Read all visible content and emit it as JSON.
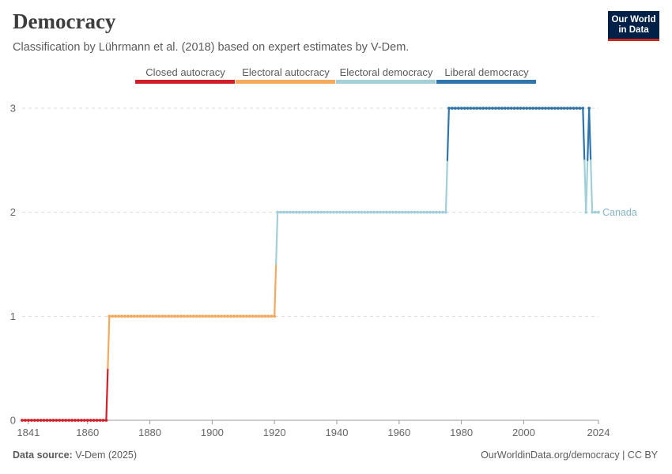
{
  "header": {
    "title": "Democracy",
    "subtitle": "Classification by Lührmann et al. (2018) based on expert estimates by V-Dem."
  },
  "logo": {
    "line1": "Our World",
    "line2": "in Data",
    "bg": "#002147",
    "accent": "#ce261e"
  },
  "footer": {
    "source_label": "Data source:",
    "source_value": "V-Dem (2025)",
    "credit": "OurWorldinData.org/democracy | CC BY"
  },
  "chart_data": {
    "type": "line",
    "title": "Democracy",
    "subtitle": "Classification by Lührmann et al. (2018) based on expert estimates by V-Dem.",
    "xlabel": "",
    "ylabel": "",
    "xlim": [
      1839,
      2024
    ],
    "ylim": [
      0,
      3
    ],
    "x_ticks": [
      1841,
      1860,
      1880,
      1900,
      1920,
      1940,
      1960,
      1980,
      2000,
      2024
    ],
    "y_ticks": [
      0,
      1,
      2,
      3
    ],
    "grid": "horizontal dashed",
    "legend": {
      "placement": "top-center",
      "items": [
        {
          "label": "Closed autocracy",
          "color": "#d11f2a"
        },
        {
          "label": "Electoral autocracy",
          "color": "#f4a95d"
        },
        {
          "label": "Electoral democracy",
          "color": "#a2cfd8"
        },
        {
          "label": "Liberal democracy",
          "color": "#2e75ad"
        }
      ]
    },
    "series": [
      {
        "name": "Canada",
        "label_color": "#86b4c8",
        "segments": [
          {
            "from": 1839,
            "to": 1866,
            "value": 0
          },
          {
            "from": 1867,
            "to": 1920,
            "value": 1
          },
          {
            "from": 1921,
            "to": 1975,
            "value": 2
          },
          {
            "from": 1976,
            "to": 2019,
            "value": 3
          },
          {
            "from": 2020,
            "to": 2020,
            "value": 2
          },
          {
            "from": 2021,
            "to": 2021,
            "value": 3
          },
          {
            "from": 2022,
            "to": 2024,
            "value": 2
          }
        ]
      }
    ]
  }
}
